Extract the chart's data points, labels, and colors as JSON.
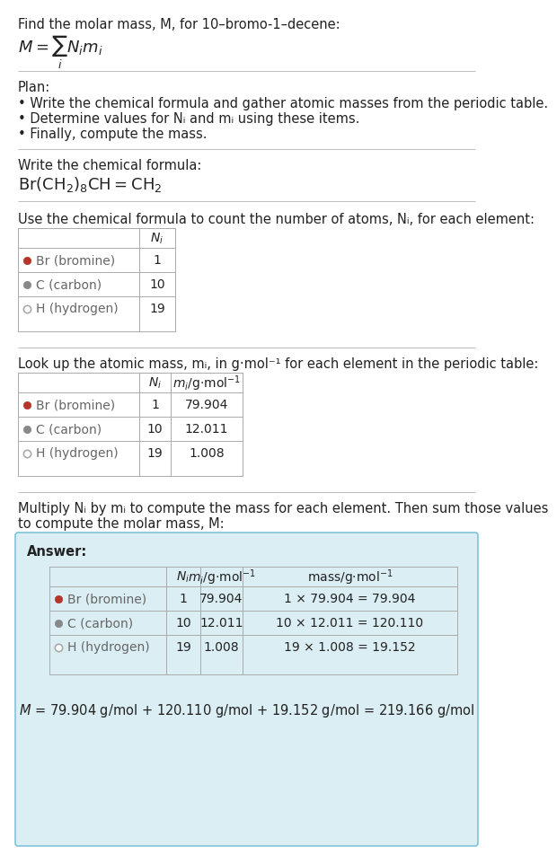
{
  "title_line": "Find the molar mass, M, for 10–bromo-1–decene:",
  "plan_header": "Plan:",
  "plan_bullets": [
    "Write the chemical formula and gather atomic masses from the periodic table.",
    "Determine values for Nᵢ and mᵢ using these items.",
    "Finally, compute the mass."
  ],
  "chem_formula_header": "Write the chemical formula:",
  "count_header": "Use the chemical formula to count the number of atoms, Nᵢ, for each element:",
  "count_col_header": "Nᵢ",
  "count_elements": [
    "Br (bromine)",
    "C (carbon)",
    "H (hydrogen)"
  ],
  "count_colors": [
    "#b5352a",
    "#888888",
    "#ffffff"
  ],
  "count_marker_edge": [
    "#b5352a",
    "#888888",
    "#aaaaaa"
  ],
  "count_marker_types": [
    "filled",
    "filled",
    "open"
  ],
  "count_values": [
    "1",
    "10",
    "19"
  ],
  "lookup_header": "Look up the atomic mass, mᵢ, in g·mol⁻¹ for each element in the periodic table:",
  "lookup_Ni": [
    "1",
    "10",
    "19"
  ],
  "lookup_mi": [
    "79.904",
    "12.011",
    "1.008"
  ],
  "multiply_header1": "Multiply Nᵢ by mᵢ to compute the mass for each element. Then sum those values",
  "multiply_header2": "to compute the molar mass, M:",
  "answer_label": "Answer:",
  "ans_Ni": [
    "1",
    "10",
    "19"
  ],
  "ans_mi": [
    "79.904",
    "12.011",
    "1.008"
  ],
  "ans_mass": [
    "1 × 79.904 = 79.904",
    "10 × 12.011 = 120.110",
    "19 × 1.008 = 19.152"
  ],
  "final_eq": "M = 79.904 g/mol + 120.110 g/mol + 19.152 g/mol = 219.166 g/mol",
  "answer_bg": "#dbeef4",
  "answer_border": "#7fc4d8",
  "table_border": "#aaaaaa",
  "text_color": "#222222",
  "gray_text": "#666666",
  "bg_color": "#ffffff",
  "sep_color": "#bbbbbb"
}
